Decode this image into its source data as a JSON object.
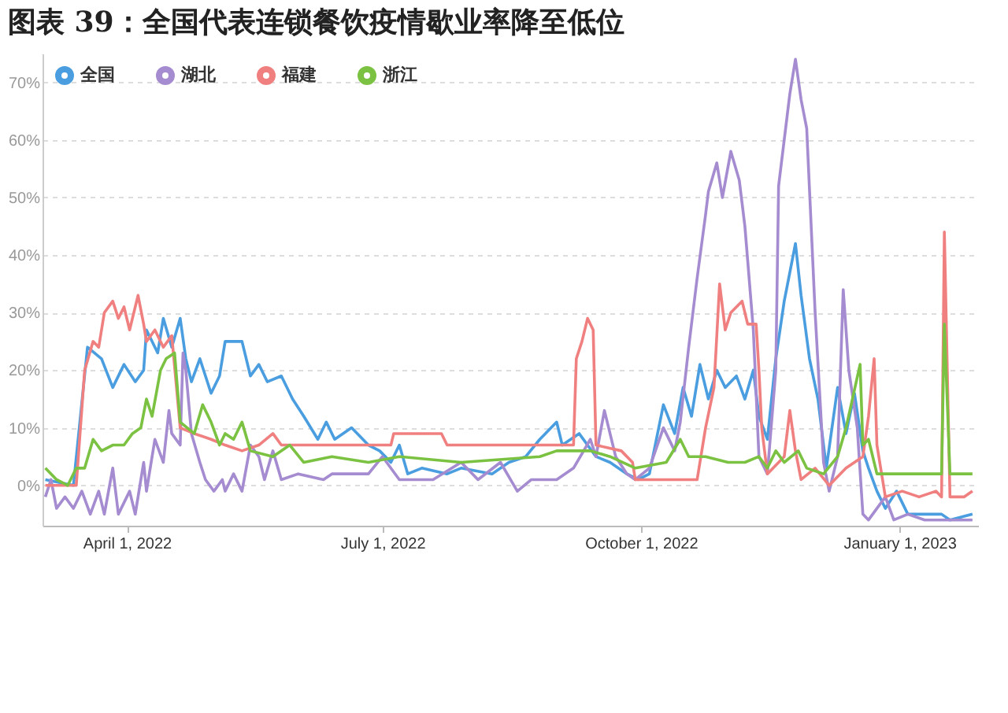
{
  "chart_data": {
    "type": "line",
    "title": "图表 39：全国代表连锁餐饮疫情歇业率降至低位",
    "xlim": [
      "2022-03-02",
      "2023-01-29"
    ],
    "xticks": [
      {
        "value": "2022-04-01",
        "label": "April 1, 2022"
      },
      {
        "value": "2022-07-01",
        "label": "July 1, 2022"
      },
      {
        "value": "2022-10-01",
        "label": "October 1, 2022"
      },
      {
        "value": "2023-01-01",
        "label": "January 1, 2023"
      }
    ],
    "ylim": [
      -7,
      75
    ],
    "yticks": [
      {
        "value": 0,
        "label": "0%"
      },
      {
        "value": 10,
        "label": "10%"
      },
      {
        "value": 20,
        "label": "20%"
      },
      {
        "value": 30,
        "label": "30%"
      },
      {
        "value": 40,
        "label": "40%"
      },
      {
        "value": 50,
        "label": "50%"
      },
      {
        "value": 60,
        "label": "60%"
      },
      {
        "value": 70,
        "label": "70%"
      }
    ],
    "grid": "y",
    "legend": "top left",
    "marker": "none",
    "line_style": "solid",
    "series": [
      {
        "name": "全国",
        "color": "#4a9ee0",
        "x": [
          "2022-03-03",
          "2022-03-13",
          "2022-03-18",
          "2022-03-23",
          "2022-03-27",
          "2022-03-31",
          "2022-04-04",
          "2022-04-07",
          "2022-04-08",
          "2022-04-12",
          "2022-04-14",
          "2022-04-17",
          "2022-04-20",
          "2022-04-22",
          "2022-04-24",
          "2022-04-27",
          "2022-05-01",
          "2022-05-04",
          "2022-05-06",
          "2022-05-12",
          "2022-05-15",
          "2022-05-18",
          "2022-05-21",
          "2022-05-26",
          "2022-05-30",
          "2022-06-03",
          "2022-06-08",
          "2022-06-11",
          "2022-06-14",
          "2022-06-20",
          "2022-06-26",
          "2022-06-30",
          "2022-07-04",
          "2022-07-07",
          "2022-07-10",
          "2022-07-15",
          "2022-07-24",
          "2022-07-29",
          "2022-08-09",
          "2022-08-15",
          "2022-08-21",
          "2022-08-26",
          "2022-09-01",
          "2022-09-03",
          "2022-09-09",
          "2022-09-15",
          "2022-09-20",
          "2022-09-26",
          "2022-09-30",
          "2022-10-04",
          "2022-10-09",
          "2022-10-13",
          "2022-10-16",
          "2022-10-19",
          "2022-10-22",
          "2022-10-25",
          "2022-10-28",
          "2022-10-31",
          "2022-11-04",
          "2022-11-07",
          "2022-11-10",
          "2022-11-12",
          "2022-11-15",
          "2022-11-18",
          "2022-11-21",
          "2022-11-23",
          "2022-11-25",
          "2022-11-27",
          "2022-11-30",
          "2022-12-03",
          "2022-12-06",
          "2022-12-10",
          "2022-12-13",
          "2022-12-16",
          "2022-12-19",
          "2022-12-21",
          "2022-12-24",
          "2022-12-27",
          "2022-12-31",
          "2023-01-04",
          "2023-01-10",
          "2023-01-16",
          "2023-01-19",
          "2023-01-27"
        ],
        "values": [
          1,
          0,
          24,
          22,
          17,
          21,
          18,
          20,
          27,
          23,
          29,
          24,
          29,
          22,
          18,
          22,
          16,
          19,
          25,
          25,
          19,
          21,
          18,
          19,
          15,
          12,
          8,
          11,
          8,
          10,
          7,
          6,
          4,
          7,
          2,
          3,
          2,
          3,
          2,
          4,
          5,
          8,
          11,
          7,
          9,
          5,
          4,
          2,
          1,
          2,
          14,
          9,
          17,
          12,
          21,
          15,
          20,
          17,
          19,
          15,
          20,
          12,
          8,
          22,
          32,
          37,
          42,
          33,
          22,
          15,
          3,
          17,
          9,
          16,
          6,
          3,
          -1,
          -4,
          -1,
          -5,
          -5,
          -5,
          -6,
          -5
        ]
      },
      {
        "name": "湖北",
        "color": "#a58bd0",
        "x": [
          "2022-03-03",
          "2022-03-05",
          "2022-03-07",
          "2022-03-10",
          "2022-03-13",
          "2022-03-16",
          "2022-03-19",
          "2022-03-22",
          "2022-03-24",
          "2022-03-27",
          "2022-03-29",
          "2022-04-02",
          "2022-04-04",
          "2022-04-07",
          "2022-04-08",
          "2022-04-11",
          "2022-04-14",
          "2022-04-16",
          "2022-04-17",
          "2022-04-20",
          "2022-04-21",
          "2022-04-22",
          "2022-04-24",
          "2022-04-27",
          "2022-04-29",
          "2022-05-02",
          "2022-05-05",
          "2022-05-06",
          "2022-05-09",
          "2022-05-12",
          "2022-05-15",
          "2022-05-18",
          "2022-05-20",
          "2022-05-23",
          "2022-05-26",
          "2022-06-01",
          "2022-06-10",
          "2022-06-13",
          "2022-06-26",
          "2022-07-01",
          "2022-07-07",
          "2022-07-19",
          "2022-07-29",
          "2022-08-04",
          "2022-08-12",
          "2022-08-18",
          "2022-08-23",
          "2022-09-01",
          "2022-09-07",
          "2022-09-13",
          "2022-09-15",
          "2022-09-18",
          "2022-09-22",
          "2022-09-26",
          "2022-09-29",
          "2022-10-04",
          "2022-10-09",
          "2022-10-13",
          "2022-10-15",
          "2022-10-18",
          "2022-10-21",
          "2022-10-24",
          "2022-10-25",
          "2022-10-28",
          "2022-10-30",
          "2022-11-02",
          "2022-11-05",
          "2022-11-07",
          "2022-11-10",
          "2022-11-12",
          "2022-11-15",
          "2022-11-18",
          "2022-11-19",
          "2022-11-21",
          "2022-11-22",
          "2022-11-23",
          "2022-11-25",
          "2022-11-27",
          "2022-11-29",
          "2022-12-02",
          "2022-12-05",
          "2022-12-07",
          "2022-12-10",
          "2022-12-12",
          "2022-12-14",
          "2022-12-17",
          "2022-12-19",
          "2022-12-21",
          "2022-12-27",
          "2022-12-30",
          "2023-01-04",
          "2023-01-10",
          "2023-01-16",
          "2023-01-19",
          "2023-01-27"
        ],
        "values": [
          -2,
          1,
          -4,
          -2,
          -4,
          -1,
          -5,
          -1,
          -5,
          3,
          -5,
          -1,
          -5,
          4,
          -1,
          8,
          4,
          13,
          9,
          7,
          23,
          20,
          9,
          4,
          1,
          -1,
          1,
          -1,
          2,
          -1,
          7,
          5,
          1,
          6,
          1,
          2,
          1,
          2,
          2,
          5,
          1,
          1,
          4,
          1,
          4,
          -1,
          1,
          1,
          3,
          8,
          5,
          13,
          5,
          2,
          1,
          3,
          10,
          6,
          11,
          24,
          36,
          47,
          51,
          56,
          50,
          58,
          53,
          45,
          27,
          5,
          2,
          20,
          52,
          60,
          64,
          68,
          74,
          67,
          62,
          30,
          4,
          -1,
          5,
          34,
          20,
          10,
          -5,
          -6,
          -2,
          -6,
          -5,
          -6,
          -6,
          -6,
          -6
        ]
      },
      {
        "name": "福建",
        "color": "#f08080",
        "x": [
          "2022-03-03",
          "2022-03-14",
          "2022-03-17",
          "2022-03-20",
          "2022-03-22",
          "2022-03-24",
          "2022-03-27",
          "2022-03-29",
          "2022-03-31",
          "2022-04-02",
          "2022-04-05",
          "2022-04-07",
          "2022-04-08",
          "2022-04-11",
          "2022-04-14",
          "2022-04-17",
          "2022-04-20",
          "2022-04-25",
          "2022-05-01",
          "2022-05-06",
          "2022-05-12",
          "2022-05-18",
          "2022-05-23",
          "2022-05-26",
          "2022-06-03",
          "2022-06-14",
          "2022-07-04",
          "2022-07-05",
          "2022-07-22",
          "2022-07-24",
          "2022-09-01",
          "2022-09-07",
          "2022-09-08",
          "2022-09-10",
          "2022-09-12",
          "2022-09-14",
          "2022-09-15",
          "2022-09-24",
          "2022-09-28",
          "2022-09-29",
          "2022-10-21",
          "2022-10-24",
          "2022-10-27",
          "2022-10-29",
          "2022-10-31",
          "2022-11-02",
          "2022-11-06",
          "2022-11-08",
          "2022-11-11",
          "2022-11-12",
          "2022-11-13",
          "2022-11-15",
          "2022-11-21",
          "2022-11-23",
          "2022-11-25",
          "2022-11-27",
          "2022-12-02",
          "2022-12-07",
          "2022-12-13",
          "2022-12-19",
          "2022-12-21",
          "2022-12-23",
          "2022-12-24",
          "2022-12-27",
          "2023-01-02",
          "2023-01-08",
          "2023-01-14",
          "2023-01-16",
          "2023-01-17",
          "2023-01-19",
          "2023-01-24",
          "2023-01-27"
        ],
        "values": [
          0,
          0,
          20,
          25,
          24,
          30,
          32,
          29,
          31,
          27,
          33,
          28,
          25,
          27,
          24,
          26,
          10,
          9,
          8,
          7,
          6,
          7,
          9,
          7,
          7,
          7,
          7,
          9,
          9,
          7,
          7,
          7,
          22,
          25,
          29,
          27,
          7,
          6,
          4,
          1,
          1,
          10,
          17,
          35,
          27,
          30,
          32,
          28,
          28,
          20,
          10,
          2,
          5,
          13,
          6,
          1,
          3,
          0,
          3,
          5,
          12,
          22,
          7,
          -2,
          -1,
          -2,
          -1,
          -2,
          44,
          -2,
          -2,
          -1
        ]
      },
      {
        "name": "浙江",
        "color": "#7cc242",
        "x": [
          "2022-03-03",
          "2022-03-07",
          "2022-03-11",
          "2022-03-14",
          "2022-03-17",
          "2022-03-20",
          "2022-03-23",
          "2022-03-27",
          "2022-03-31",
          "2022-04-03",
          "2022-04-06",
          "2022-04-08",
          "2022-04-10",
          "2022-04-13",
          "2022-04-15",
          "2022-04-18",
          "2022-04-20",
          "2022-04-25",
          "2022-04-28",
          "2022-05-01",
          "2022-05-04",
          "2022-05-06",
          "2022-05-09",
          "2022-05-12",
          "2022-05-15",
          "2022-05-23",
          "2022-05-29",
          "2022-06-03",
          "2022-06-13",
          "2022-06-26",
          "2022-07-07",
          "2022-07-29",
          "2022-08-26",
          "2022-09-01",
          "2022-09-13",
          "2022-09-20",
          "2022-09-29",
          "2022-10-10",
          "2022-10-15",
          "2022-10-18",
          "2022-10-24",
          "2022-11-01",
          "2022-11-07",
          "2022-11-12",
          "2022-11-15",
          "2022-11-18",
          "2022-11-21",
          "2022-11-26",
          "2022-11-29",
          "2022-12-05",
          "2022-12-10",
          "2022-12-13",
          "2022-12-18",
          "2022-12-19",
          "2022-12-21",
          "2022-12-24",
          "2023-01-14",
          "2023-01-16",
          "2023-01-17",
          "2023-01-19",
          "2023-01-27"
        ],
        "values": [
          3,
          1,
          0,
          3,
          3,
          8,
          6,
          7,
          7,
          9,
          10,
          15,
          12,
          20,
          22,
          23,
          11,
          9,
          14,
          11,
          7,
          9,
          8,
          11,
          6,
          5,
          7,
          4,
          5,
          4,
          5,
          4,
          5,
          6,
          6,
          5,
          3,
          4,
          8,
          5,
          5,
          4,
          4,
          5,
          3,
          6,
          4,
          6,
          3,
          2,
          5,
          10,
          21,
          7,
          8,
          2,
          2,
          2,
          28,
          2,
          2
        ]
      }
    ]
  }
}
